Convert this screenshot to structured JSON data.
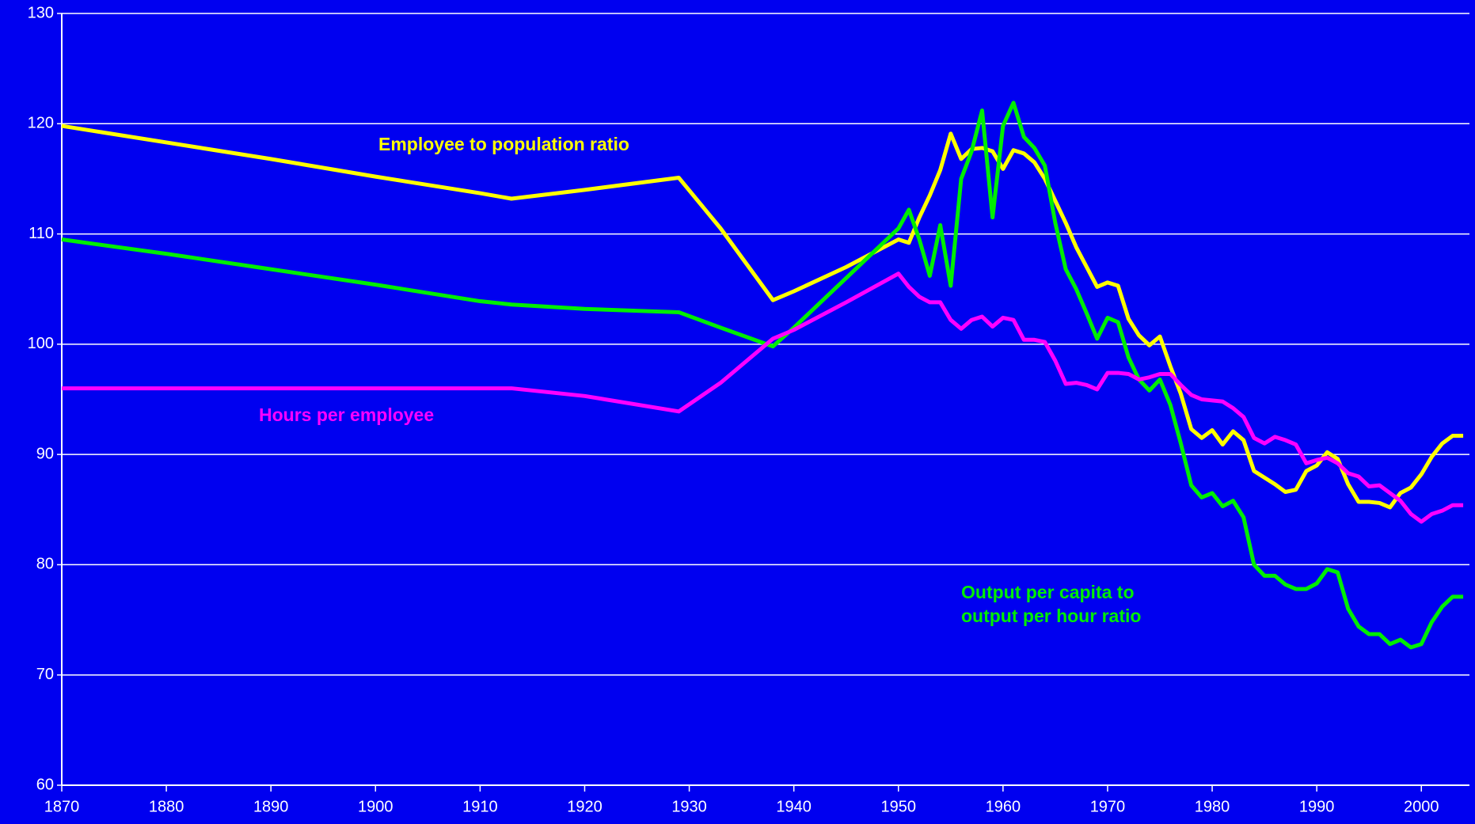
{
  "chart_data": {
    "type": "line",
    "x": [
      1870,
      1880,
      1890,
      1900,
      1910,
      1913,
      1920,
      1929,
      1933,
      1938,
      1940,
      1945,
      1950,
      1951,
      1952,
      1953,
      1954,
      1955,
      1956,
      1957,
      1958,
      1959,
      1960,
      1961,
      1962,
      1963,
      1964,
      1965,
      1966,
      1967,
      1968,
      1969,
      1970,
      1971,
      1972,
      1973,
      1974,
      1975,
      1976,
      1977,
      1978,
      1979,
      1980,
      1981,
      1982,
      1983,
      1984,
      1985,
      1986,
      1987,
      1988,
      1989,
      1990,
      1991,
      1992,
      1993,
      1994,
      1995,
      1996,
      1997,
      1998,
      1999,
      2000,
      2001,
      2002,
      2003,
      2004
    ],
    "series": [
      {
        "name": "Employee to population ratio",
        "color": "#ffff00",
        "values": [
          119.8,
          118.3,
          116.8,
          115.2,
          113.7,
          113.2,
          114.0,
          115.1,
          110.5,
          104.0,
          104.8,
          107.0,
          109.5,
          109.2,
          111.5,
          113.5,
          115.8,
          119.1,
          116.8,
          117.7,
          117.8,
          117.5,
          115.9,
          117.6,
          117.3,
          116.5,
          115.0,
          113.0,
          111.0,
          108.8,
          107.0,
          105.2,
          105.6,
          105.3,
          102.3,
          100.8,
          99.9,
          100.7,
          98.0,
          95.5,
          92.3,
          91.5,
          92.2,
          90.9,
          92.1,
          91.3,
          88.5,
          87.9,
          87.3,
          86.6,
          86.8,
          88.5,
          89.0,
          90.2,
          89.6,
          87.3,
          85.7,
          85.7,
          85.6,
          85.2,
          86.5,
          87.0,
          88.2,
          89.8,
          91.0,
          91.7,
          91.7
        ]
      },
      {
        "name": "Output per capita to output per hour ratio",
        "color": "#00ee00",
        "values": [
          109.5,
          108.2,
          106.8,
          105.4,
          103.9,
          103.6,
          103.2,
          102.9,
          101.5,
          99.8,
          101.5,
          106.0,
          110.5,
          112.2,
          109.5,
          106.2,
          110.8,
          105.3,
          115.0,
          117.5,
          121.2,
          111.5,
          119.8,
          121.9,
          118.8,
          117.8,
          116.2,
          111.0,
          106.8,
          105.0,
          102.8,
          100.5,
          102.4,
          102.0,
          98.8,
          96.8,
          95.8,
          96.8,
          94.5,
          91.0,
          87.2,
          86.1,
          86.5,
          85.3,
          85.8,
          84.3,
          80.0,
          79.0,
          79.0,
          78.2,
          77.8,
          77.8,
          78.3,
          79.6,
          79.3,
          76.0,
          74.4,
          73.7,
          73.7,
          72.8,
          73.2,
          72.5,
          72.8,
          74.8,
          76.2,
          77.1,
          77.1
        ]
      },
      {
        "name": "Hours per employee",
        "color": "#ff00ff",
        "values": [
          96,
          96,
          96,
          96,
          96,
          96,
          95.3,
          93.9,
          96.5,
          100.5,
          101.3,
          103.8,
          106.4,
          105.2,
          104.3,
          103.8,
          103.8,
          102.2,
          101.4,
          102.2,
          102.5,
          101.6,
          102.4,
          102.2,
          100.4,
          100.4,
          100.2,
          98.5,
          96.4,
          96.5,
          96.3,
          95.9,
          97.4,
          97.4,
          97.3,
          96.8,
          97.0,
          97.3,
          97.3,
          96.3,
          95.4,
          95.0,
          94.9,
          94.8,
          94.2,
          93.4,
          91.5,
          91.0,
          91.6,
          91.3,
          90.9,
          89.2,
          89.5,
          89.7,
          89.2,
          88.3,
          88.0,
          87.1,
          87.2,
          86.5,
          85.8,
          84.6,
          83.9,
          84.6,
          84.9,
          85.4,
          85.4
        ]
      }
    ],
    "xlim": [
      1870,
      2004.6
    ],
    "xticks": [
      1870,
      1880,
      1890,
      1900,
      1910,
      1920,
      1930,
      1940,
      1950,
      1960,
      1970,
      1980,
      1990,
      2000
    ],
    "ylim": [
      60,
      130
    ],
    "yticks": [
      60,
      70,
      80,
      90,
      100,
      110,
      120,
      130
    ],
    "grid": true
  }
}
